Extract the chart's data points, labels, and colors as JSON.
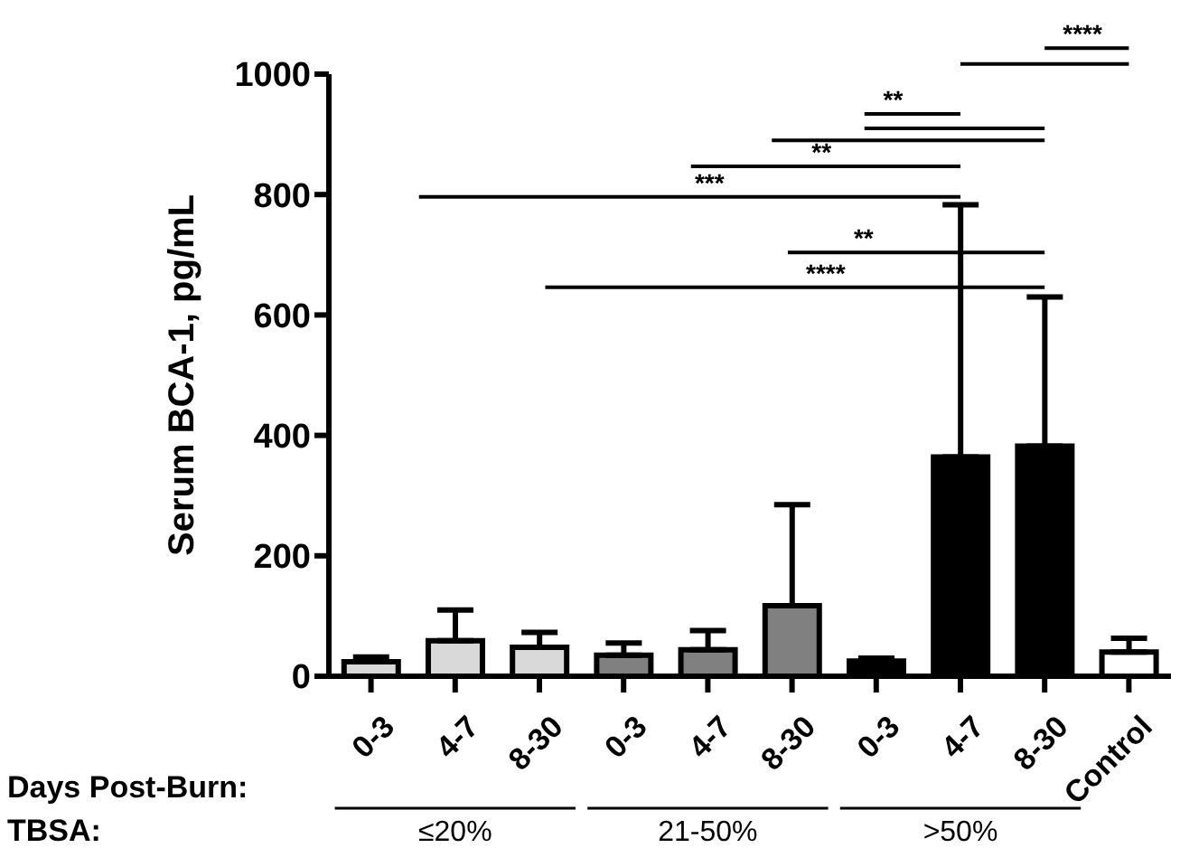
{
  "chart_data": {
    "type": "bar",
    "ylabel": "Serum BCA-1, pg/mL",
    "categories": [
      "0-3",
      "4-7",
      "8-30",
      "0-3",
      "4-7",
      "8-30",
      "0-3",
      "4-7",
      "8-30",
      "Control"
    ],
    "values": [
      24,
      59,
      48,
      35,
      44,
      117,
      25,
      364,
      382,
      40
    ],
    "errors": [
      [
        24,
        32
      ],
      [
        59,
        110
      ],
      [
        48,
        73
      ],
      [
        35,
        55
      ],
      [
        44,
        76
      ],
      [
        117,
        285
      ],
      [
        25,
        30
      ],
      [
        364,
        783
      ],
      [
        382,
        630
      ],
      [
        40,
        63
      ]
    ],
    "colors": [
      "#d9d9d9",
      "#d9d9d9",
      "#d9d9d9",
      "#808080",
      "#808080",
      "#808080",
      "#000000",
      "#000000",
      "#000000",
      "#ffffff"
    ],
    "ylim": [
      0,
      1000
    ],
    "yticks": [
      0,
      200,
      400,
      600,
      800,
      1000
    ],
    "grid": false,
    "legend": false,
    "annotations": [
      "****",
      "**",
      "**",
      "***",
      "**",
      "****",
      "Days Post-Burn:",
      "TBSA:",
      "≤20%",
      "21-50%",
      ">50%"
    ]
  }
}
